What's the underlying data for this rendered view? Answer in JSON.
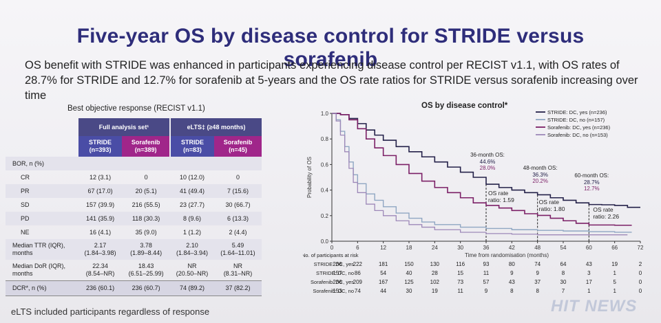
{
  "slide": {
    "title": "Five-year OS by disease control for STRIDE versus sorafenib",
    "subtitle": "OS benefit with STRIDE was enhanced in participants experiencing disease control per RECIST v1.1, with OS rates of 28.7% for STRIDE and 12.7% for sorafenib at 5-years and the OS rate ratios for STRIDE versus sorafenib increasing over time",
    "footnote": "eLTS included participants regardless of response",
    "watermark": "HIT NEWS"
  },
  "table": {
    "title": "Best objective response (RECIST v1.1)",
    "group1": "Full analysis set¹",
    "group2": "eLTS‡ (≥48 months)",
    "headers": [
      {
        "name": "STRIDE",
        "n": "(n=393)"
      },
      {
        "name": "Sorafenib",
        "n": "(n=389)"
      },
      {
        "name": "STRIDE",
        "n": "(n=83)"
      },
      {
        "name": "Sorafenib",
        "n": "(n=45)"
      }
    ],
    "bor_label": "BOR, n (%)",
    "rows": [
      {
        "label": "CR",
        "cells": [
          "12 (3.1)",
          "0",
          "10 (12.0)",
          "0"
        ]
      },
      {
        "label": "PR",
        "cells": [
          "67 (17.0)",
          "20 (5.1)",
          "41 (49.4)",
          "7 (15.6)"
        ]
      },
      {
        "label": "SD",
        "cells": [
          "157 (39.9)",
          "216 (55.5)",
          "23 (27.7)",
          "30 (66.7)"
        ]
      },
      {
        "label": "PD",
        "cells": [
          "141 (35.9)",
          "118 (30.3)",
          "8 (9.6)",
          "6 (13.3)"
        ]
      },
      {
        "label": "NE",
        "cells": [
          "16 (4.1)",
          "35 (9.0)",
          "1 (1.2)",
          "2 (4.4)"
        ]
      }
    ],
    "ttr": {
      "label1": "Median TTR (IQR),",
      "label2": "months",
      "cells": [
        [
          "2.17",
          "(1.84–3.98)"
        ],
        [
          "3.78",
          "(1.89–8.44)"
        ],
        [
          "2.10",
          "(1.84–3.94)"
        ],
        [
          "5.49",
          "(1.64–11.01)"
        ]
      ]
    },
    "dor": {
      "label1": "Median DoR (IQR),",
      "label2": "months",
      "cells": [
        [
          "22.34",
          "(8.54–NR)"
        ],
        [
          "18.43",
          "(6.51–25.99)"
        ],
        [
          "NR",
          "(20.50–NR)"
        ],
        [
          "NR",
          "(8.31–NR)"
        ]
      ]
    },
    "dcr": {
      "label": "DCR*, n (%)",
      "cells": [
        "236 (60.1)",
        "236 (60.7)",
        "74 (89.2)",
        "37 (82.2)"
      ]
    }
  },
  "chart_data": {
    "type": "line",
    "title": "OS by disease control*",
    "xlabel": "Time from randomisation (months)",
    "ylabel": "Probability of OS",
    "xlim": [
      0,
      72
    ],
    "ylim": [
      0,
      1.0
    ],
    "xticks": [
      0,
      6,
      12,
      18,
      24,
      30,
      36,
      42,
      48,
      54,
      60,
      66,
      72
    ],
    "yticks": [
      "0.0",
      "0.2",
      "0.4",
      "0.6",
      "0.8",
      "1.0"
    ],
    "legend_position": "top-right",
    "series": [
      {
        "name": "STRIDE: DC, yes (n=236)",
        "color": "#232048",
        "width": 1.6,
        "points": [
          [
            0,
            1.0
          ],
          [
            2,
            0.99
          ],
          [
            4,
            0.96
          ],
          [
            6,
            0.92
          ],
          [
            8,
            0.87
          ],
          [
            10,
            0.83
          ],
          [
            12,
            0.79
          ],
          [
            15,
            0.74
          ],
          [
            18,
            0.7
          ],
          [
            21,
            0.66
          ],
          [
            24,
            0.62
          ],
          [
            27,
            0.58
          ],
          [
            30,
            0.54
          ],
          [
            33,
            0.5
          ],
          [
            36,
            0.446
          ],
          [
            39,
            0.42
          ],
          [
            42,
            0.4
          ],
          [
            45,
            0.38
          ],
          [
            48,
            0.363
          ],
          [
            51,
            0.34
          ],
          [
            54,
            0.32
          ],
          [
            57,
            0.3
          ],
          [
            60,
            0.287
          ],
          [
            63,
            0.285
          ],
          [
            66,
            0.28
          ],
          [
            69,
            0.265
          ],
          [
            72,
            0.265
          ]
        ]
      },
      {
        "name": "STRIDE: DC, no (n=157)",
        "color": "#8fa6c2",
        "width": 1.4,
        "points": [
          [
            0,
            1.0
          ],
          [
            1,
            0.95
          ],
          [
            2,
            0.86
          ],
          [
            3,
            0.74
          ],
          [
            4,
            0.62
          ],
          [
            5,
            0.52
          ],
          [
            6,
            0.45
          ],
          [
            8,
            0.37
          ],
          [
            10,
            0.32
          ],
          [
            12,
            0.27
          ],
          [
            15,
            0.22
          ],
          [
            18,
            0.18
          ],
          [
            21,
            0.15
          ],
          [
            24,
            0.13
          ],
          [
            30,
            0.11
          ],
          [
            36,
            0.1
          ],
          [
            42,
            0.09
          ],
          [
            48,
            0.085
          ],
          [
            54,
            0.08
          ],
          [
            60,
            0.075
          ],
          [
            66,
            0.07
          ],
          [
            70,
            0.07
          ]
        ]
      },
      {
        "name": "Sorafenib: DC, yes (n=236)",
        "color": "#7b1f66",
        "width": 1.6,
        "points": [
          [
            0,
            1.0
          ],
          [
            2,
            0.99
          ],
          [
            4,
            0.95
          ],
          [
            6,
            0.88
          ],
          [
            8,
            0.8
          ],
          [
            10,
            0.73
          ],
          [
            12,
            0.67
          ],
          [
            15,
            0.6
          ],
          [
            18,
            0.53
          ],
          [
            21,
            0.47
          ],
          [
            24,
            0.42
          ],
          [
            27,
            0.38
          ],
          [
            30,
            0.34
          ],
          [
            33,
            0.3
          ],
          [
            36,
            0.28
          ],
          [
            39,
            0.26
          ],
          [
            42,
            0.24
          ],
          [
            45,
            0.215
          ],
          [
            48,
            0.202
          ],
          [
            51,
            0.18
          ],
          [
            54,
            0.16
          ],
          [
            57,
            0.14
          ],
          [
            60,
            0.127
          ],
          [
            63,
            0.127
          ],
          [
            66,
            0.125
          ],
          [
            70,
            0.125
          ]
        ]
      },
      {
        "name": "Sorafenib: DC, no (n=153)",
        "color": "#9d88b8",
        "width": 1.3,
        "points": [
          [
            0,
            1.0
          ],
          [
            1,
            0.94
          ],
          [
            2,
            0.83
          ],
          [
            3,
            0.7
          ],
          [
            4,
            0.57
          ],
          [
            5,
            0.46
          ],
          [
            6,
            0.38
          ],
          [
            8,
            0.29
          ],
          [
            10,
            0.24
          ],
          [
            12,
            0.2
          ],
          [
            15,
            0.16
          ],
          [
            18,
            0.13
          ],
          [
            21,
            0.11
          ],
          [
            24,
            0.09
          ],
          [
            30,
            0.07
          ],
          [
            36,
            0.06
          ],
          [
            42,
            0.055
          ],
          [
            48,
            0.05
          ],
          [
            54,
            0.05
          ],
          [
            60,
            0.05
          ],
          [
            66,
            0.05
          ],
          [
            69,
            0.05
          ]
        ]
      }
    ],
    "annotations": [
      {
        "month": 36,
        "label": "36-month OS:",
        "stride": "44.6%",
        "sorafenib": "28.0%",
        "ratio_label": "OS rate",
        "ratio": "ratio: 1.59",
        "stride_y": 0.446,
        "sorafenib_y": 0.28
      },
      {
        "month": 48,
        "label": "48-month OS:",
        "stride": "36.3%",
        "sorafenib": "20.2%",
        "ratio_label": "OS rate",
        "ratio": "ratio: 1.80",
        "stride_y": 0.363,
        "sorafenib_y": 0.202
      },
      {
        "month": 60,
        "label": "60-month OS:",
        "stride": "28.7%",
        "sorafenib": "12.7%",
        "ratio_label": "OS rate",
        "ratio": "ratio: 2.26",
        "stride_y": 0.287,
        "sorafenib_y": 0.127
      }
    ],
    "at_risk": {
      "title": "No. of participants at risk",
      "rows": [
        {
          "label": "STRIDE: DC, yes",
          "values": [
            "236",
            "222",
            "181",
            "150",
            "130",
            "116",
            "93",
            "80",
            "74",
            "64",
            "43",
            "19",
            "2"
          ]
        },
        {
          "label": "STRIDE: DC, no",
          "values": [
            "157",
            "86",
            "54",
            "40",
            "28",
            "15",
            "11",
            "9",
            "9",
            "8",
            "3",
            "1",
            "0"
          ]
        },
        {
          "label": "Sorafenib: DC, yes",
          "values": [
            "236",
            "209",
            "167",
            "125",
            "102",
            "73",
            "57",
            "43",
            "37",
            "30",
            "17",
            "5",
            "0"
          ]
        },
        {
          "label": "Sorafenib: DC, no",
          "values": [
            "153",
            "74",
            "44",
            "30",
            "19",
            "11",
            "9",
            "8",
            "8",
            "7",
            "1",
            "1",
            "0"
          ]
        }
      ]
    }
  }
}
